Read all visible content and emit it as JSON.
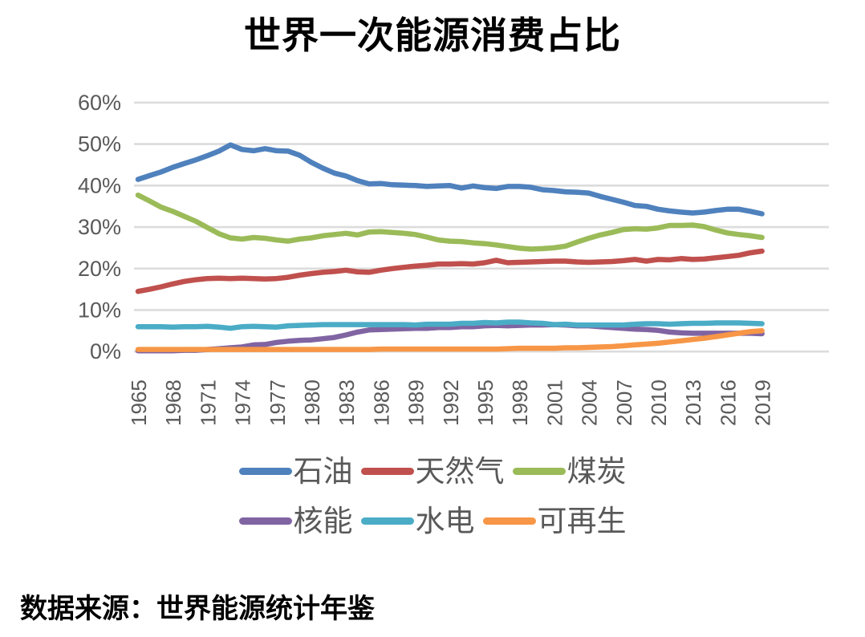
{
  "title": "世界一次能源消费占比",
  "source": "数据来源：世界能源统计年鉴",
  "colors": {
    "background": "#FFFFFF",
    "gridline": "#DCDCDC",
    "axis_text": "#595959",
    "title_text": "#000000",
    "legend_text": "#595959"
  },
  "y_axis": {
    "ticks": [
      "60%",
      "50%",
      "40%",
      "30%",
      "20%",
      "10%",
      "0%"
    ],
    "min": 0,
    "max": 60
  },
  "x_axis": {
    "ticks": [
      1965,
      1968,
      1971,
      1974,
      1977,
      1980,
      1983,
      1986,
      1989,
      1992,
      1995,
      1998,
      2001,
      2004,
      2007,
      2010,
      2013,
      2016,
      2019
    ]
  },
  "legend": {
    "items": [
      "石油",
      "天然气",
      "煤炭",
      "核能",
      "水电",
      "可再生"
    ]
  },
  "chart_data": {
    "type": "line",
    "title": "世界一次能源消费占比",
    "xlabel": "",
    "ylabel": "",
    "ylim": [
      0,
      60
    ],
    "grid": true,
    "legend_position": "bottom",
    "x": [
      1965,
      1966,
      1967,
      1968,
      1969,
      1970,
      1971,
      1972,
      1973,
      1974,
      1975,
      1976,
      1977,
      1978,
      1979,
      1980,
      1981,
      1982,
      1983,
      1984,
      1985,
      1986,
      1987,
      1988,
      1989,
      1990,
      1991,
      1992,
      1993,
      1994,
      1995,
      1996,
      1997,
      1998,
      1999,
      2000,
      2001,
      2002,
      2003,
      2004,
      2005,
      2006,
      2007,
      2008,
      2009,
      2010,
      2011,
      2012,
      2013,
      2014,
      2015,
      2016,
      2017,
      2018,
      2019
    ],
    "series": [
      {
        "name": "石油",
        "color": "#4F81BD",
        "values": [
          41.5,
          42.4,
          43.3,
          44.4,
          45.3,
          46.2,
          47.2,
          48.3,
          49.8,
          48.7,
          48.4,
          48.9,
          48.4,
          48.3,
          47.3,
          45.6,
          44.2,
          43.0,
          42.3,
          41.2,
          40.4,
          40.5,
          40.2,
          40.1,
          40.0,
          39.8,
          39.9,
          40.0,
          39.4,
          39.9,
          39.5,
          39.3,
          39.8,
          39.8,
          39.6,
          39.0,
          38.8,
          38.5,
          38.4,
          38.2,
          37.4,
          36.7,
          36.0,
          35.2,
          35.0,
          34.3,
          33.9,
          33.6,
          33.4,
          33.6,
          34.0,
          34.3,
          34.3,
          33.8,
          33.2
        ]
      },
      {
        "name": "天然气",
        "color": "#C0504D",
        "values": [
          14.5,
          15.0,
          15.6,
          16.3,
          16.9,
          17.3,
          17.6,
          17.7,
          17.6,
          17.7,
          17.6,
          17.5,
          17.6,
          17.9,
          18.4,
          18.8,
          19.1,
          19.3,
          19.6,
          19.2,
          19.1,
          19.6,
          20.0,
          20.3,
          20.6,
          20.8,
          21.1,
          21.1,
          21.2,
          21.1,
          21.4,
          22.0,
          21.4,
          21.5,
          21.6,
          21.7,
          21.8,
          21.8,
          21.6,
          21.5,
          21.6,
          21.7,
          21.9,
          22.2,
          21.8,
          22.2,
          22.1,
          22.4,
          22.2,
          22.3,
          22.6,
          22.9,
          23.2,
          23.8,
          24.2
        ]
      },
      {
        "name": "煤炭",
        "color": "#9BBB59",
        "values": [
          37.7,
          36.3,
          34.8,
          33.8,
          32.6,
          31.4,
          29.9,
          28.4,
          27.4,
          27.1,
          27.5,
          27.3,
          26.9,
          26.6,
          27.1,
          27.4,
          27.9,
          28.2,
          28.5,
          28.1,
          28.8,
          28.9,
          28.7,
          28.5,
          28.2,
          27.6,
          26.9,
          26.6,
          26.5,
          26.2,
          26.0,
          25.7,
          25.3,
          24.9,
          24.7,
          24.8,
          25.0,
          25.4,
          26.4,
          27.3,
          28.1,
          28.7,
          29.4,
          29.6,
          29.5,
          29.8,
          30.4,
          30.4,
          30.5,
          30.1,
          29.3,
          28.6,
          28.2,
          27.9,
          27.5
        ]
      },
      {
        "name": "核能",
        "color": "#8064A2",
        "values": [
          0.2,
          0.2,
          0.2,
          0.2,
          0.3,
          0.3,
          0.5,
          0.7,
          0.9,
          1.1,
          1.6,
          1.7,
          2.2,
          2.5,
          2.7,
          2.8,
          3.1,
          3.4,
          4.0,
          4.7,
          5.2,
          5.3,
          5.4,
          5.5,
          5.6,
          5.6,
          5.8,
          5.8,
          6.0,
          6.0,
          6.2,
          6.3,
          6.2,
          6.3,
          6.4,
          6.4,
          6.5,
          6.4,
          6.2,
          6.2,
          6.0,
          5.8,
          5.6,
          5.4,
          5.3,
          5.1,
          4.7,
          4.5,
          4.4,
          4.4,
          4.4,
          4.4,
          4.4,
          4.4,
          4.3
        ]
      },
      {
        "name": "水电",
        "color": "#4BACC6",
        "values": [
          6.0,
          6.0,
          6.0,
          5.9,
          6.0,
          6.0,
          6.1,
          5.9,
          5.6,
          6.0,
          6.1,
          6.0,
          5.9,
          6.2,
          6.3,
          6.4,
          6.5,
          6.5,
          6.5,
          6.5,
          6.5,
          6.5,
          6.5,
          6.5,
          6.4,
          6.6,
          6.6,
          6.6,
          6.8,
          6.8,
          7.0,
          6.9,
          7.1,
          7.1,
          6.9,
          6.8,
          6.5,
          6.6,
          6.4,
          6.4,
          6.4,
          6.4,
          6.4,
          6.6,
          6.7,
          6.7,
          6.6,
          6.7,
          6.8,
          6.8,
          6.9,
          6.9,
          6.9,
          6.8,
          6.7
        ]
      },
      {
        "name": "可再生",
        "color": "#F79646",
        "values": [
          0.5,
          0.5,
          0.5,
          0.5,
          0.5,
          0.5,
          0.5,
          0.5,
          0.5,
          0.5,
          0.5,
          0.5,
          0.5,
          0.5,
          0.5,
          0.5,
          0.5,
          0.5,
          0.5,
          0.5,
          0.5,
          0.6,
          0.6,
          0.6,
          0.6,
          0.6,
          0.6,
          0.6,
          0.6,
          0.6,
          0.6,
          0.6,
          0.7,
          0.8,
          0.8,
          0.8,
          0.8,
          0.9,
          0.9,
          1.0,
          1.1,
          1.2,
          1.4,
          1.6,
          1.8,
          2.0,
          2.3,
          2.6,
          2.9,
          3.2,
          3.6,
          4.0,
          4.4,
          4.8,
          5.0
        ]
      }
    ]
  }
}
